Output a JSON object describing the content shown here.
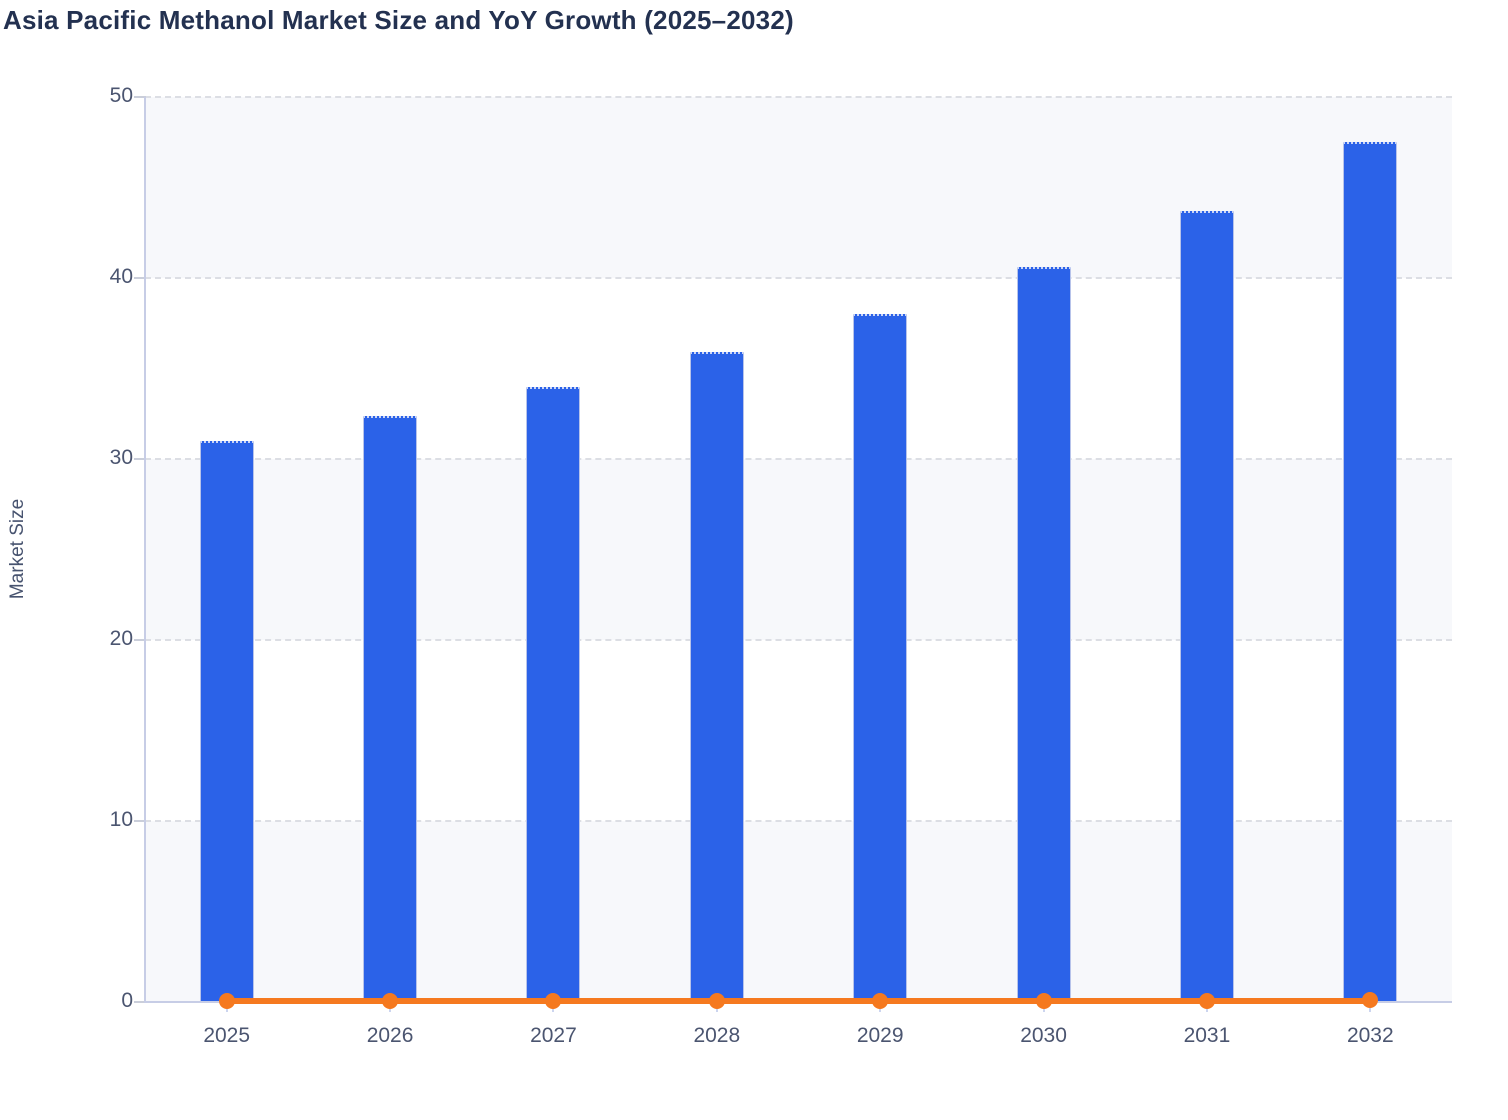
{
  "title": "Asia Pacific Methanol Market Size and YoY Growth (2025–2032)",
  "y_axis": {
    "title": "Market Size",
    "tick_labels": [
      "0",
      "10",
      "20",
      "30",
      "40",
      "50"
    ]
  },
  "x_axis": {
    "tick_labels": [
      "2025",
      "2026",
      "2027",
      "2028",
      "2029",
      "2030",
      "2031",
      "2032"
    ]
  },
  "colors": {
    "bar_blue": "#2b62e8",
    "line_orange": "#f5791f",
    "title_navy": "#233150",
    "tick_text": "#4b5570",
    "axis_line": "#c7cde6",
    "gridline": "#dcdee4",
    "band_gray": "#f7f8fb"
  },
  "chart_data": {
    "type": "bar",
    "title": "Asia Pacific Methanol Market Size and YoY Growth (2025–2032)",
    "categories": [
      "2025",
      "2026",
      "2027",
      "2028",
      "2029",
      "2030",
      "2031",
      "2032"
    ],
    "series": [
      {
        "name": "Market Size",
        "type": "bar",
        "color": "#2b62e8",
        "values": [
          31.0,
          32.4,
          34.0,
          35.9,
          38.0,
          40.6,
          43.7,
          47.5
        ]
      },
      {
        "name": "YoY Growth",
        "type": "line",
        "color": "#f5791f",
        "values": [
          0.043,
          0.045,
          0.049,
          0.056,
          0.058,
          0.068,
          0.076,
          0.087
        ],
        "note": "line renders flat at ~0 against the shared 0–50 axis"
      }
    ],
    "xlabel": "",
    "ylabel": "Market Size",
    "ylim": [
      0,
      50
    ],
    "y_ticks": [
      0,
      10,
      20,
      30,
      40,
      50
    ],
    "grid": "dashed horizontal",
    "background_bands": "alternating gray/white between gridlines",
    "legend": false
  }
}
